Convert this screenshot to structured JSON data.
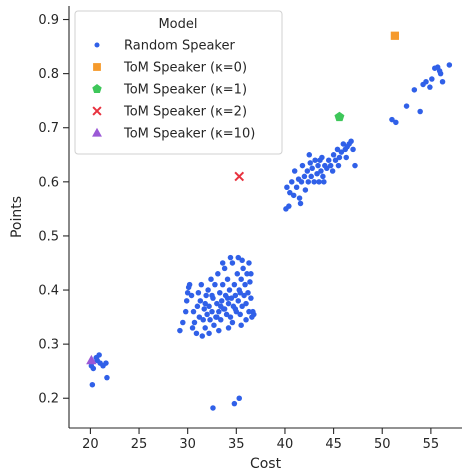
{
  "chart_data": {
    "type": "scatter",
    "xlabel": "Cost",
    "ylabel": "Points",
    "xlim": [
      17.8,
      58.2
    ],
    "ylim": [
      0.145,
      0.925
    ],
    "xticks": [
      20,
      25,
      30,
      35,
      40,
      45,
      50,
      55
    ],
    "yticks": [
      0.2,
      0.3,
      0.4,
      0.5,
      0.6,
      0.7,
      0.8,
      0.9
    ],
    "grid": false,
    "legend": {
      "title": "Model",
      "placement": "top-left",
      "entries": [
        "Random Speaker",
        "ToM Speaker (κ=0)",
        "ToM Speaker (κ=1)",
        "ToM Speaker (κ=2)",
        "ToM Speaker (κ=10)"
      ]
    },
    "series": [
      {
        "name": "Random Speaker",
        "marker": "circle",
        "color": "#3060e8",
        "points": [
          [
            20.1,
            0.26
          ],
          [
            20.3,
            0.255
          ],
          [
            20.7,
            0.27
          ],
          [
            20.9,
            0.28
          ],
          [
            21.0,
            0.265
          ],
          [
            21.3,
            0.26
          ],
          [
            21.6,
            0.265
          ],
          [
            20.2,
            0.225
          ],
          [
            21.7,
            0.238
          ],
          [
            20.6,
            0.275
          ],
          [
            32.6,
            0.182
          ],
          [
            34.8,
            0.19
          ],
          [
            35.3,
            0.2
          ],
          [
            29.2,
            0.325
          ],
          [
            29.5,
            0.34
          ],
          [
            29.8,
            0.36
          ],
          [
            29.9,
            0.38
          ],
          [
            30.0,
            0.395
          ],
          [
            30.1,
            0.405
          ],
          [
            30.4,
            0.39
          ],
          [
            30.6,
            0.36
          ],
          [
            30.7,
            0.34
          ],
          [
            30.9,
            0.32
          ],
          [
            31.0,
            0.37
          ],
          [
            31.2,
            0.35
          ],
          [
            31.3,
            0.38
          ],
          [
            31.4,
            0.41
          ],
          [
            31.6,
            0.345
          ],
          [
            31.7,
            0.365
          ],
          [
            31.8,
            0.33
          ],
          [
            31.9,
            0.39
          ],
          [
            32.0,
            0.355
          ],
          [
            32.1,
            0.4
          ],
          [
            32.2,
            0.37
          ],
          [
            32.3,
            0.345
          ],
          [
            32.4,
            0.42
          ],
          [
            32.5,
            0.36
          ],
          [
            32.6,
            0.385
          ],
          [
            32.7,
            0.335
          ],
          [
            32.8,
            0.41
          ],
          [
            32.9,
            0.35
          ],
          [
            33.0,
            0.375
          ],
          [
            33.1,
            0.43
          ],
          [
            33.2,
            0.36
          ],
          [
            33.3,
            0.395
          ],
          [
            33.4,
            0.345
          ],
          [
            33.5,
            0.38
          ],
          [
            33.6,
            0.41
          ],
          [
            33.7,
            0.365
          ],
          [
            33.8,
            0.44
          ],
          [
            33.9,
            0.39
          ],
          [
            34.0,
            0.355
          ],
          [
            34.1,
            0.42
          ],
          [
            34.2,
            0.375
          ],
          [
            34.3,
            0.4
          ],
          [
            34.4,
            0.35
          ],
          [
            34.5,
            0.385
          ],
          [
            34.6,
            0.45
          ],
          [
            34.7,
            0.37
          ],
          [
            34.8,
            0.41
          ],
          [
            34.9,
            0.39
          ],
          [
            35.0,
            0.36
          ],
          [
            35.1,
            0.43
          ],
          [
            35.2,
            0.38
          ],
          [
            35.3,
            0.4
          ],
          [
            35.4,
            0.355
          ],
          [
            35.5,
            0.42
          ],
          [
            35.6,
            0.37
          ],
          [
            35.7,
            0.44
          ],
          [
            35.8,
            0.39
          ],
          [
            35.9,
            0.41
          ],
          [
            36.0,
            0.375
          ],
          [
            36.1,
            0.43
          ],
          [
            36.2,
            0.395
          ],
          [
            36.3,
            0.36
          ],
          [
            36.4,
            0.415
          ],
          [
            36.5,
            0.385
          ],
          [
            36.6,
            0.35
          ],
          [
            36.7,
            0.36
          ],
          [
            36.8,
            0.355
          ],
          [
            36.5,
            0.43
          ],
          [
            36.3,
            0.45
          ],
          [
            35.6,
            0.455
          ],
          [
            35.2,
            0.46
          ],
          [
            34.4,
            0.46
          ],
          [
            33.6,
            0.45
          ],
          [
            30.2,
            0.41
          ],
          [
            30.5,
            0.33
          ],
          [
            31.5,
            0.315
          ],
          [
            32.2,
            0.32
          ],
          [
            33.2,
            0.325
          ],
          [
            34.2,
            0.33
          ],
          [
            35.5,
            0.335
          ],
          [
            36.0,
            0.345
          ],
          [
            31.1,
            0.395
          ],
          [
            31.8,
            0.375
          ],
          [
            32.5,
            0.39
          ],
          [
            33.4,
            0.37
          ],
          [
            34.1,
            0.385
          ],
          [
            34.9,
            0.365
          ],
          [
            35.4,
            0.395
          ],
          [
            33.0,
            0.35
          ],
          [
            33.8,
            0.365
          ],
          [
            34.6,
            0.34
          ],
          [
            40.1,
            0.55
          ],
          [
            40.4,
            0.555
          ],
          [
            40.2,
            0.59
          ],
          [
            40.5,
            0.58
          ],
          [
            40.7,
            0.6
          ],
          [
            40.9,
            0.575
          ],
          [
            41.0,
            0.62
          ],
          [
            41.2,
            0.59
          ],
          [
            41.4,
            0.605
          ],
          [
            41.5,
            0.57
          ],
          [
            41.7,
            0.6
          ],
          [
            41.8,
            0.63
          ],
          [
            42.0,
            0.61
          ],
          [
            42.1,
            0.585
          ],
          [
            42.3,
            0.62
          ],
          [
            42.4,
            0.6
          ],
          [
            42.5,
            0.65
          ],
          [
            42.7,
            0.61
          ],
          [
            42.8,
            0.625
          ],
          [
            43.0,
            0.6
          ],
          [
            43.1,
            0.64
          ],
          [
            43.3,
            0.615
          ],
          [
            43.4,
            0.63
          ],
          [
            43.5,
            0.6
          ],
          [
            43.7,
            0.62
          ],
          [
            43.8,
            0.645
          ],
          [
            43.9,
            0.61
          ],
          [
            44.1,
            0.63
          ],
          [
            44.3,
            0.625
          ],
          [
            44.5,
            0.64
          ],
          [
            44.7,
            0.63
          ],
          [
            45.0,
            0.65
          ],
          [
            45.2,
            0.64
          ],
          [
            45.4,
            0.66
          ],
          [
            45.6,
            0.645
          ],
          [
            45.8,
            0.655
          ],
          [
            46.0,
            0.67
          ],
          [
            46.2,
            0.66
          ],
          [
            46.4,
            0.665
          ],
          [
            46.6,
            0.67
          ],
          [
            46.8,
            0.675
          ],
          [
            47.0,
            0.66
          ],
          [
            47.2,
            0.63
          ],
          [
            44.0,
            0.6
          ],
          [
            41.6,
            0.56
          ],
          [
            42.6,
            0.635
          ],
          [
            43.6,
            0.64
          ],
          [
            44.9,
            0.62
          ],
          [
            45.5,
            0.63
          ],
          [
            46.3,
            0.645
          ],
          [
            51.0,
            0.715
          ],
          [
            51.4,
            0.71
          ],
          [
            52.5,
            0.74
          ],
          [
            53.3,
            0.77
          ],
          [
            54.5,
            0.785
          ],
          [
            54.9,
            0.775
          ],
          [
            55.1,
            0.79
          ],
          [
            55.4,
            0.81
          ],
          [
            55.7,
            0.812
          ],
          [
            55.9,
            0.805
          ],
          [
            56.0,
            0.8
          ],
          [
            56.2,
            0.785
          ],
          [
            56.9,
            0.816
          ],
          [
            53.9,
            0.73
          ],
          [
            54.2,
            0.78
          ]
        ]
      },
      {
        "name": "ToM Speaker (κ=0)",
        "marker": "square",
        "color": "#f59a2c",
        "points": [
          [
            51.3,
            0.87
          ]
        ]
      },
      {
        "name": "ToM Speaker (κ=1)",
        "marker": "pentagon",
        "color": "#3ec75a",
        "points": [
          [
            45.6,
            0.72
          ]
        ]
      },
      {
        "name": "ToM Speaker (κ=2)",
        "marker": "x",
        "color": "#e8323f",
        "points": [
          [
            35.3,
            0.61
          ]
        ]
      },
      {
        "name": "ToM Speaker (κ=10)",
        "marker": "triangle",
        "color": "#9b59d6",
        "points": [
          [
            20.1,
            0.27
          ]
        ]
      }
    ]
  }
}
